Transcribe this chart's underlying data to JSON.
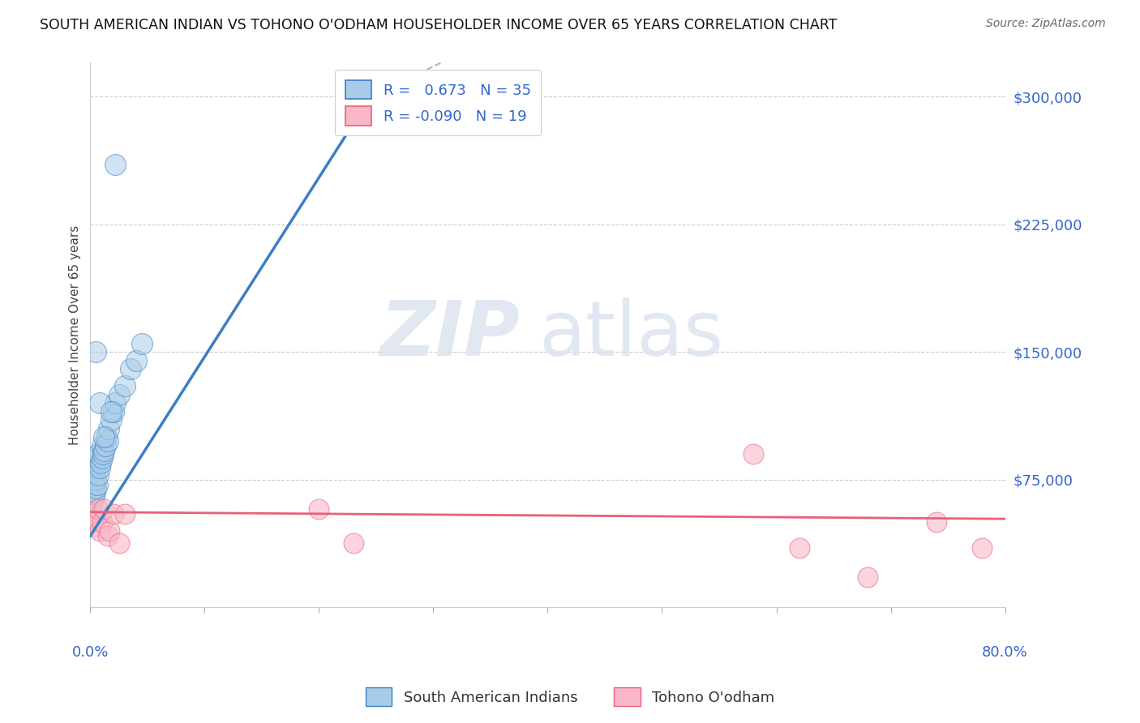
{
  "title": "SOUTH AMERICAN INDIAN VS TOHONO O'ODHAM HOUSEHOLDER INCOME OVER 65 YEARS CORRELATION CHART",
  "source": "Source: ZipAtlas.com",
  "ylabel": "Householder Income Over 65 years",
  "ytick_values": [
    75000,
    150000,
    225000,
    300000
  ],
  "xmin": 0.0,
  "xmax": 0.8,
  "ymin": 0,
  "ymax": 320000,
  "legend_blue_label": "South American Indians",
  "legend_pink_label": "Tohono O'odham",
  "r_blue": 0.673,
  "n_blue": 35,
  "r_pink": -0.09,
  "n_pink": 19,
  "blue_color": "#a8cce8",
  "pink_color": "#f9b8c8",
  "blue_line_color": "#3b7fc4",
  "pink_line_color": "#e8607a",
  "watermark_zip": "ZIP",
  "watermark_atlas": "atlas",
  "blue_x": [
    0.001,
    0.002,
    0.003,
    0.003,
    0.004,
    0.004,
    0.005,
    0.005,
    0.006,
    0.006,
    0.007,
    0.007,
    0.008,
    0.009,
    0.01,
    0.01,
    0.011,
    0.012,
    0.013,
    0.014,
    0.015,
    0.016,
    0.018,
    0.02,
    0.022,
    0.025,
    0.03,
    0.035,
    0.04,
    0.045,
    0.005,
    0.008,
    0.012,
    0.018,
    0.022
  ],
  "blue_y": [
    58000,
    62000,
    65000,
    72000,
    68000,
    80000,
    70000,
    75000,
    72000,
    88000,
    78000,
    90000,
    82000,
    85000,
    88000,
    95000,
    90000,
    92000,
    95000,
    100000,
    98000,
    105000,
    110000,
    115000,
    120000,
    125000,
    130000,
    140000,
    145000,
    155000,
    150000,
    120000,
    100000,
    115000,
    260000
  ],
  "pink_x": [
    0.001,
    0.003,
    0.005,
    0.007,
    0.008,
    0.01,
    0.012,
    0.015,
    0.017,
    0.02,
    0.025,
    0.03,
    0.2,
    0.23,
    0.58,
    0.62,
    0.68,
    0.74,
    0.78
  ],
  "pink_y": [
    55000,
    48000,
    52000,
    58000,
    45000,
    50000,
    58000,
    42000,
    45000,
    55000,
    38000,
    55000,
    58000,
    38000,
    90000,
    35000,
    18000,
    50000,
    35000
  ],
  "blue_regline_x": [
    0.0,
    0.245
  ],
  "blue_regline_y": [
    42000,
    300000
  ],
  "blue_dashline_x": [
    0.245,
    0.8
  ],
  "blue_dashline_y": [
    300000,
    820000
  ],
  "pink_regline_x": [
    0.0,
    0.8
  ],
  "pink_regline_y": [
    56000,
    52000
  ]
}
